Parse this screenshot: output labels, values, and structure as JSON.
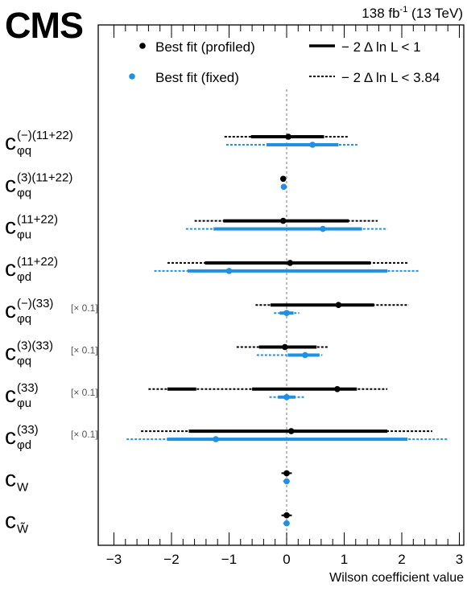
{
  "header": {
    "experiment": "CMS",
    "lumi_prefix": "138 fb",
    "lumi_exponent": "-1",
    "lumi_suffix": " (13 TeV)"
  },
  "legend": {
    "profiled": "Best fit (profiled)",
    "fixed": "Best fit (fixed)",
    "solid": "− 2 Δ ln L < 1",
    "dashed": "− 2 Δ ln L < 3.84"
  },
  "colors": {
    "profiled": "#000000",
    "fixed": "#1e90e6",
    "zero_line": "#999999"
  },
  "chart_data": {
    "type": "scatter",
    "xlabel": "Wilson coefficient value",
    "xlim": [
      -3.2,
      3.1
    ],
    "x_ticks": [
      -3,
      -2,
      -1,
      0,
      1,
      2,
      3
    ],
    "x_tick_labels": [
      "−3",
      "−2",
      "−1",
      "0",
      "1",
      "2",
      "3"
    ],
    "parameters": [
      {
        "base": "c",
        "sub": "φq",
        "sup": "(−)(11+22)",
        "scale": "",
        "profiled": {
          "best": 0.03,
          "cl68": [
            [
              -0.62,
              0.65
            ]
          ],
          "cl95": [
            [
              -1.08,
              1.07
            ]
          ]
        },
        "fixed": {
          "best": 0.45,
          "cl68": [
            [
              -0.35,
              0.9
            ]
          ],
          "cl95": [
            [
              -1.05,
              1.23
            ]
          ]
        }
      },
      {
        "base": "c",
        "sub": "φq",
        "sup": "(3)(11+22)",
        "scale": "",
        "profiled": {
          "best": -0.06,
          "cl68": [
            [
              -0.09,
              -0.03
            ]
          ],
          "cl95": [
            [
              -0.11,
              -0.01
            ]
          ]
        },
        "fixed": {
          "best": -0.05,
          "cl68": [
            [
              -0.08,
              -0.02
            ]
          ],
          "cl95": [
            [
              -0.1,
              0.0
            ]
          ]
        }
      },
      {
        "base": "c",
        "sub": "φu",
        "sup": "(11+22)",
        "scale": "",
        "profiled": {
          "best": -0.06,
          "cl68": [
            [
              -1.1,
              1.08
            ]
          ],
          "cl95": [
            [
              -1.6,
              1.58
            ]
          ]
        },
        "fixed": {
          "best": 0.63,
          "cl68": [
            [
              -1.27,
              1.31
            ]
          ],
          "cl95": [
            [
              -1.75,
              1.75
            ]
          ]
        }
      },
      {
        "base": "c",
        "sub": "φd",
        "sup": "(11+22)",
        "scale": "",
        "profiled": {
          "best": 0.06,
          "cl68": [
            [
              -1.42,
              1.46
            ]
          ],
          "cl95": [
            [
              -2.07,
              2.1
            ]
          ]
        },
        "fixed": {
          "best": -1.0,
          "cl68": [
            [
              -1.72,
              1.75
            ]
          ],
          "cl95": [
            [
              -2.3,
              2.3
            ]
          ]
        }
      },
      {
        "base": "c",
        "sub": "φq",
        "sup": "(−)(33)",
        "scale": "[× 0.1]",
        "profiled": {
          "best": 0.9,
          "cl68": [
            [
              -0.28,
              1.52
            ]
          ],
          "cl95": [
            [
              -0.54,
              2.12
            ]
          ]
        },
        "fixed": {
          "best": 0.0,
          "cl68": [
            [
              -0.12,
              0.12
            ]
          ],
          "cl95": [
            [
              -0.22,
              0.22
            ]
          ]
        }
      },
      {
        "base": "c",
        "sub": "φq",
        "sup": "(3)(33)",
        "scale": "[× 0.1]",
        "profiled": {
          "best": -0.03,
          "cl68": [
            [
              -0.48,
              0.52
            ]
          ],
          "cl95": [
            [
              -0.87,
              0.73
            ]
          ]
        },
        "fixed": {
          "best": 0.32,
          "cl68": [
            [
              0.02,
              0.57
            ]
          ],
          "cl95": [
            [
              -0.52,
              0.62
            ]
          ]
        }
      },
      {
        "base": "c",
        "sub": "φu",
        "sup": "(33)",
        "scale": "[× 0.1]",
        "profiled": {
          "best": 0.88,
          "cl68": [
            [
              -2.07,
              -1.57
            ],
            [
              -0.6,
              1.22
            ]
          ],
          "cl95": [
            [
              -2.4,
              1.75
            ]
          ]
        },
        "fixed": {
          "best": 0.0,
          "cl68": [
            [
              -0.15,
              0.15
            ]
          ],
          "cl95": [
            [
              -0.3,
              0.3
            ]
          ]
        }
      },
      {
        "base": "c",
        "sub": "φd",
        "sup": "(33)",
        "scale": "[× 0.1]",
        "profiled": {
          "best": 0.08,
          "cl68": [
            [
              -1.7,
              1.75
            ]
          ],
          "cl95": [
            [
              -2.53,
              2.53
            ]
          ]
        },
        "fixed": {
          "best": -1.23,
          "cl68": [
            [
              -2.08,
              2.1
            ]
          ],
          "cl95": [
            [
              -2.78,
              2.8
            ]
          ]
        }
      },
      {
        "base": "c",
        "sub": "W",
        "sup": "",
        "scale": "",
        "profiled": {
          "best": 0.0,
          "cl68": [
            [
              -0.05,
              0.05
            ]
          ],
          "cl95": [
            [
              -0.09,
              0.09
            ]
          ]
        },
        "fixed": {
          "best": 0.0,
          "cl68": [
            [
              -0.03,
              0.03
            ]
          ],
          "cl95": [
            [
              -0.06,
              0.06
            ]
          ]
        }
      },
      {
        "base": "c",
        "sub": "W̃",
        "sup": "",
        "scale": "",
        "profiled": {
          "best": 0.0,
          "cl68": [
            [
              -0.05,
              0.05
            ]
          ],
          "cl95": [
            [
              -0.09,
              0.09
            ]
          ]
        },
        "fixed": {
          "best": 0.0,
          "cl68": [
            [
              -0.03,
              0.03
            ]
          ],
          "cl95": [
            [
              -0.06,
              0.06
            ]
          ]
        }
      }
    ]
  }
}
